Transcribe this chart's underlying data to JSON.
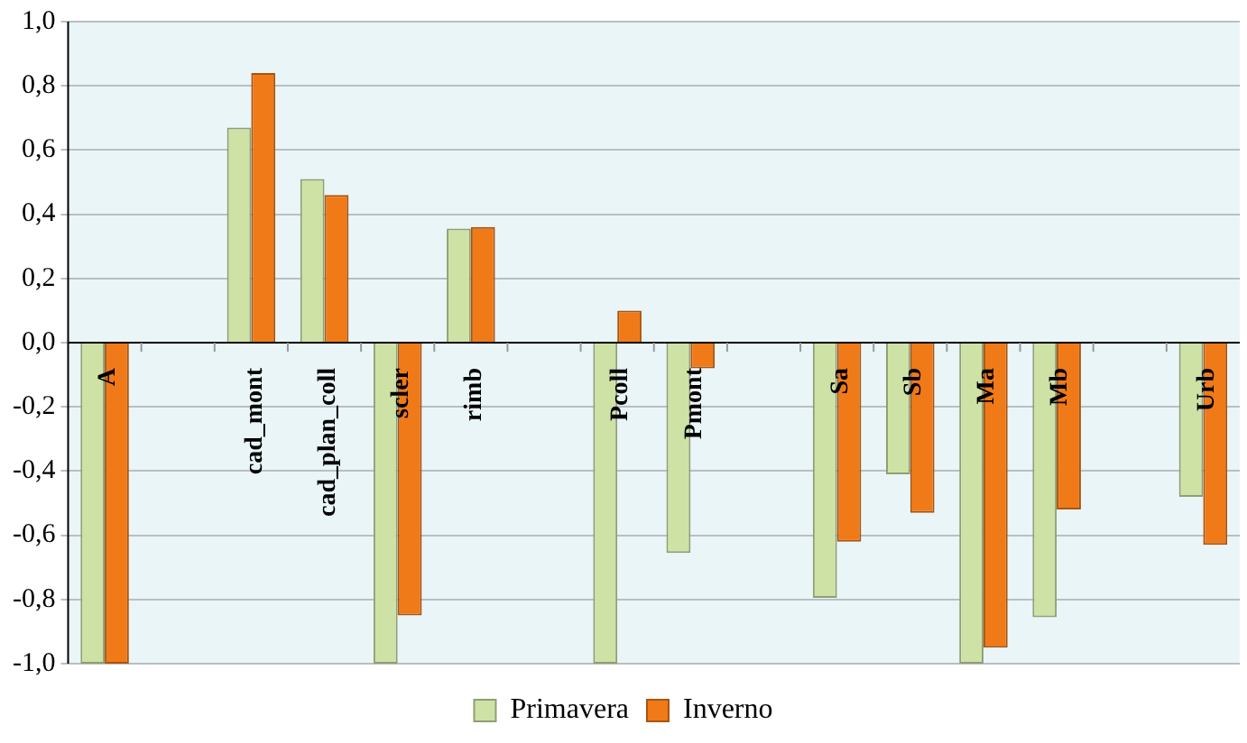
{
  "chart_data": {
    "type": "bar",
    "categories": [
      "A",
      null,
      "cad_mont",
      "cad_plan_coll",
      "scler",
      "rimb",
      null,
      "Pcoll",
      "Pmont",
      null,
      "Sa",
      "Sb",
      "Ma",
      "Mb",
      null,
      "Urb"
    ],
    "series": [
      {
        "name": "Primavera",
        "color": "#cfe2a6",
        "values": [
          -1.0,
          null,
          0.67,
          0.51,
          -1.0,
          0.355,
          null,
          -1.0,
          -0.655,
          null,
          -0.795,
          -0.41,
          -1.0,
          -0.855,
          null,
          -0.48
        ]
      },
      {
        "name": "Inverno",
        "color": "#f07a18",
        "values": [
          -1.0,
          null,
          0.84,
          0.46,
          -0.85,
          0.36,
          null,
          0.1,
          -0.08,
          null,
          -0.62,
          -0.53,
          -0.95,
          -0.52,
          null,
          -0.63
        ]
      }
    ],
    "ylim": [
      -1.0,
      1.0
    ],
    "yticks": [
      {
        "value": -1.0,
        "label": "-1,0"
      },
      {
        "value": -0.8,
        "label": "-0,8"
      },
      {
        "value": -0.6,
        "label": "-0,6"
      },
      {
        "value": -0.4,
        "label": "-0,4"
      },
      {
        "value": -0.2,
        "label": "-0,2"
      },
      {
        "value": 0,
        "label": "0,0"
      },
      {
        "value": 0.2,
        "label": "0,2"
      },
      {
        "value": 0.4,
        "label": "0,4"
      },
      {
        "value": 0.6,
        "label": "0,6"
      },
      {
        "value": 0.8,
        "label": "0,8"
      },
      {
        "value": 1.0,
        "label": "1,0"
      }
    ],
    "grid": "y",
    "legend": "bottom"
  }
}
